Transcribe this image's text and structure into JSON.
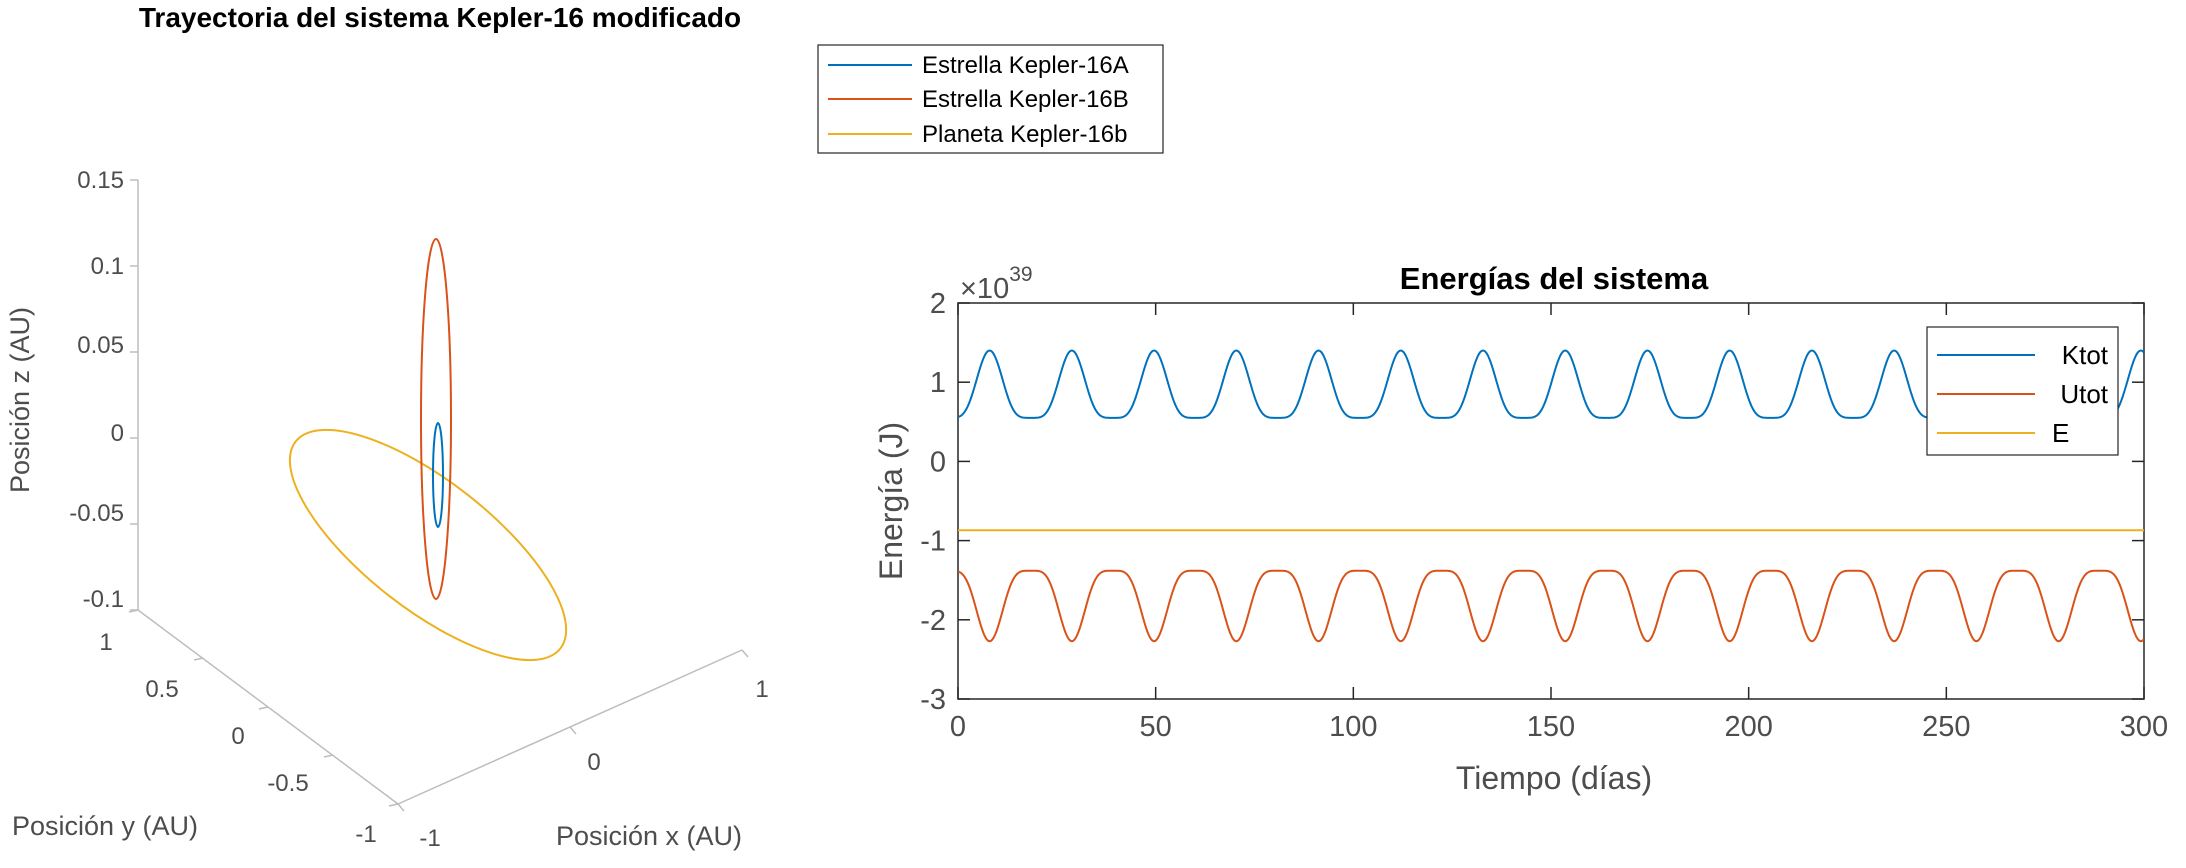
{
  "chart_data": [
    {
      "type": "line",
      "subtype": "3d-trajectory",
      "title": "Trayectoria del sistema Kepler-16 modificado",
      "xlabel": "Posición x (AU)",
      "ylabel": "Posición y (AU)",
      "zlabel": "Posición z (AU)",
      "xlim": [
        -1,
        1
      ],
      "ylim": [
        -1,
        1
      ],
      "zlim": [
        -0.1,
        0.15
      ],
      "xticks": [
        "-1",
        "0",
        "1"
      ],
      "yticks": [
        "-1",
        "-0.5",
        "0",
        "0.5",
        "1"
      ],
      "zticks": [
        "-0.1",
        "-0.05",
        "0",
        "0.05",
        "0.1",
        "0.15"
      ],
      "legend_position": "top-right, outside",
      "grid": false,
      "series": [
        {
          "name": "Estrella Kepler-16A",
          "color": "#0072BD",
          "x": [
            0.02,
            0.014,
            0,
            -0.014,
            -0.02,
            -0.014,
            0,
            0.014,
            0.02
          ],
          "y": [
            0,
            0.014,
            0.02,
            0.014,
            0,
            -0.014,
            -0.02,
            -0.014,
            0
          ],
          "z": [
            0.01,
            0.034,
            0.04,
            0.034,
            0.01,
            -0.014,
            -0.02,
            -0.014,
            0.01
          ]
        },
        {
          "name": "Estrella Kepler-16B",
          "color": "#D95319",
          "x": [
            0.03,
            0.021,
            0,
            -0.021,
            -0.03,
            -0.021,
            0,
            0.021,
            0.03
          ],
          "y": [
            0,
            0.021,
            0.03,
            0.021,
            0,
            -0.021,
            -0.03,
            -0.021,
            0
          ],
          "z": [
            -0.1,
            -0.075,
            0,
            0.075,
            0.11,
            0.075,
            0,
            -0.075,
            -0.1
          ]
        },
        {
          "name": "Planeta Kepler-16b",
          "color": "#EDB120",
          "x": [
            0.5,
            0.35,
            0,
            -0.35,
            -0.5,
            -0.35,
            0,
            0.35,
            0.5
          ],
          "y": [
            0,
            0.35,
            0.5,
            0.35,
            0,
            -0.35,
            -0.5,
            -0.35,
            0
          ],
          "z": [
            -0.05,
            -0.02,
            0.04,
            0.07,
            0.06,
            0.03,
            -0.02,
            -0.05,
            -0.05
          ]
        }
      ]
    },
    {
      "type": "line",
      "title": "Energías del sistema",
      "xlabel": "Tiempo (días)",
      "ylabel": "Energía (J)",
      "xlim": [
        0,
        300
      ],
      "ylim": [
        -3,
        2
      ],
      "y_multiplier": "×10",
      "y_exponent": "39",
      "xticks": [
        "0",
        "50",
        "100",
        "150",
        "200",
        "250",
        "300"
      ],
      "yticks": [
        "-3",
        "-2",
        "-1",
        "0",
        "1",
        "2"
      ],
      "legend_position": "top-right",
      "grid": false,
      "period_days": 20.8,
      "series": [
        {
          "name": "Ktot",
          "color": "#0072BD",
          "x": [
            0,
            4.2,
            8,
            12.5,
            18,
            25,
            29,
            33,
            38,
            50,
            59,
            71,
            80,
            92,
            100,
            112,
            121,
            133,
            142,
            154,
            163,
            175,
            184,
            196,
            204,
            217,
            225,
            238,
            246,
            258,
            267,
            279,
            288,
            296,
            300
          ],
          "y": [
            0.62,
            1.0,
            1.4,
            1.0,
            0.55,
            0.85,
            1.4,
            1.0,
            0.55,
            1.4,
            0.55,
            1.4,
            0.55,
            1.4,
            0.55,
            1.4,
            0.55,
            1.4,
            0.55,
            1.4,
            0.55,
            1.4,
            0.55,
            1.4,
            0.55,
            1.4,
            0.55,
            1.4,
            0.55,
            1.4,
            0.55,
            1.4,
            0.55,
            0.75,
            1.05
          ]
        },
        {
          "name": "Utot",
          "color": "#D95319",
          "x": [
            0,
            4,
            8,
            15,
            19,
            25,
            29,
            36,
            40,
            50,
            56,
            60,
            71,
            77,
            81,
            92,
            98,
            102,
            113,
            119,
            123,
            133,
            140,
            144,
            154,
            161,
            165,
            175,
            182,
            186,
            196,
            202,
            207,
            217,
            223,
            227,
            238,
            244,
            248,
            258,
            265,
            269,
            279,
            286,
            290,
            296,
            300
          ],
          "y": [
            -1.45,
            -2.0,
            -2.27,
            -1.55,
            -1.38,
            -1.9,
            -2.27,
            -1.55,
            -1.38,
            -2.27,
            -1.55,
            -1.38,
            -2.27,
            -1.55,
            -1.38,
            -2.27,
            -1.55,
            -1.38,
            -2.27,
            -1.55,
            -1.38,
            -2.27,
            -1.55,
            -1.38,
            -2.27,
            -1.55,
            -1.38,
            -2.27,
            -1.55,
            -1.38,
            -2.27,
            -1.55,
            -1.38,
            -2.27,
            -1.55,
            -1.38,
            -2.27,
            -1.55,
            -1.38,
            -2.27,
            -1.55,
            -1.38,
            -2.27,
            -1.55,
            -1.38,
            -1.48,
            -1.9
          ]
        },
        {
          "name": "E",
          "color": "#EDB120",
          "x": [
            0,
            300
          ],
          "y": [
            -0.87,
            -0.87
          ]
        }
      ]
    }
  ]
}
